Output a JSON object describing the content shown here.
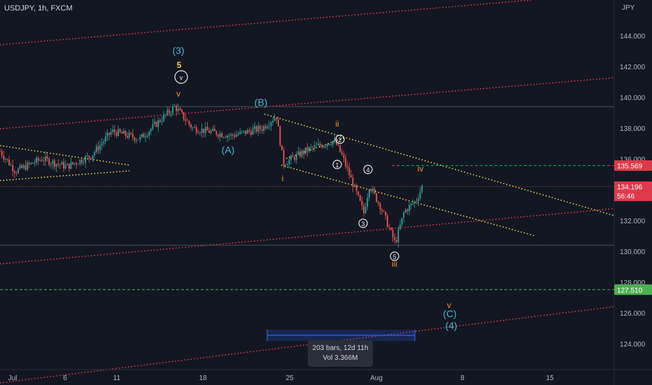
{
  "header": {
    "symbol": "USDJPY, 1h, FXCM",
    "currency": "JPY"
  },
  "colors": {
    "bg": "#131722",
    "grid_text": "#b2b5be",
    "up": "#26a69a",
    "down": "#ef5350",
    "red_channel": "#e0394b",
    "yellow_channel": "#e5d64a",
    "green_line": "#4caf50",
    "wave_teal": "#3fb8c9",
    "wave_orange": "#f0902e",
    "wave_yellow": "#f5d23a",
    "white": "#e8e8e8",
    "measure": "#2962ff"
  },
  "measure": {
    "line1": "203 bars, 12d 11h",
    "line2": "Vol 3.366M"
  },
  "chart_data": {
    "type": "candlestick",
    "symbol": "USDJPY",
    "timeframe": "1h",
    "y_axis": {
      "ylim": [
        122.0,
        146.5
      ],
      "ticks": [
        "144.000",
        "142.000",
        "140.000",
        "138.000",
        "136.000",
        "134.000",
        "132.000",
        "130.000",
        "128.000",
        "126.000",
        "124.000"
      ]
    },
    "x_axis": {
      "ticks": [
        "Jul",
        "6",
        "11",
        "18",
        "25",
        "Aug",
        "8",
        "15"
      ]
    },
    "price_labels": [
      {
        "value": "135.569",
        "color": "#e0394b"
      },
      {
        "value": "134.196",
        "sub": "56:46",
        "color": "#e0394b"
      },
      {
        "value": "127.510",
        "color": "#4caf50"
      }
    ],
    "horizontal_levels": [
      139.4,
      135.57,
      134.2,
      130.4,
      127.51
    ],
    "price_path": [
      [
        "Jul",
        136.5
      ],
      [
        "Jul",
        135.2
      ],
      [
        "6",
        136.0
      ],
      [
        "6",
        135.5
      ],
      [
        "11",
        136.2
      ],
      [
        "11",
        137.8
      ],
      [
        "11",
        137.3
      ],
      [
        "18",
        139.4
      ],
      [
        "18",
        138.0
      ],
      [
        "18",
        137.5
      ],
      [
        "25",
        138.0
      ],
      [
        "25",
        138.8
      ],
      [
        "25",
        135.7
      ],
      [
        "25",
        136.6
      ],
      [
        "25",
        137.2
      ],
      [
        "25",
        136.1
      ],
      [
        "25",
        134.3
      ],
      [
        "Aug",
        132.5
      ],
      [
        "Aug",
        134.3
      ],
      [
        "Aug",
        132.8
      ],
      [
        "Aug",
        130.5
      ],
      [
        "Aug",
        132.6
      ],
      [
        "Aug",
        133.3
      ],
      [
        "Aug",
        134.4
      ]
    ],
    "wave_labels": [
      {
        "text": "(3)",
        "color": "#3fb8c9"
      },
      {
        "text": "5",
        "color": "#f5d23a"
      },
      {
        "text": "v",
        "color": "#e8e8e8",
        "circled": true
      },
      {
        "text": "v",
        "color": "#f0902e"
      },
      {
        "text": "(B)",
        "color": "#3fb8c9"
      },
      {
        "text": "(A)",
        "color": "#3fb8c9"
      },
      {
        "text": "ii",
        "color": "#f0902e"
      },
      {
        "text": "2",
        "color": "#e8e8e8",
        "circled": true
      },
      {
        "text": "1",
        "color": "#e8e8e8",
        "circled": true
      },
      {
        "text": "i",
        "color": "#f0902e"
      },
      {
        "text": "4",
        "color": "#e8e8e8",
        "circled": true
      },
      {
        "text": "iv",
        "color": "#f0902e"
      },
      {
        "text": "3",
        "color": "#e8e8e8",
        "circled": true
      },
      {
        "text": "5",
        "color": "#e8e8e8",
        "circled": true
      },
      {
        "text": "iii",
        "color": "#f0902e"
      },
      {
        "text": "v",
        "color": "#f0902e"
      },
      {
        "text": "(C)",
        "color": "#3fb8c9"
      },
      {
        "text": "(4)",
        "color": "#3fb8c9"
      }
    ]
  }
}
